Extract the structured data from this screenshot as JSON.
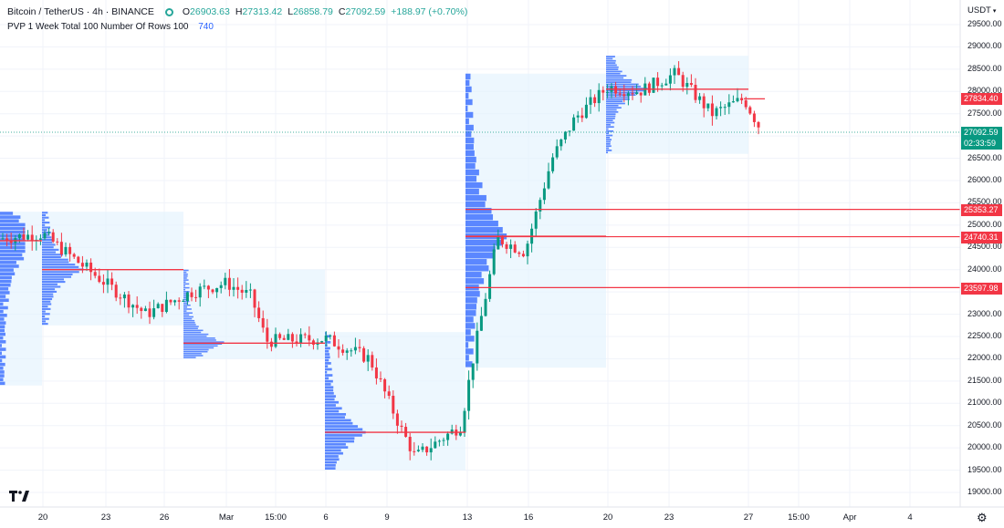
{
  "legend": {
    "symbol": "Bitcoin / TetherUS · 4h · BINANCE",
    "open_key": "O",
    "open": "26903.63",
    "high_key": "H",
    "high": "27313.42",
    "low_key": "L",
    "low": "26858.79",
    "close_key": "C",
    "close": "27092.59",
    "change": "+188.97 (+0.70%)"
  },
  "indicator": {
    "name": "PVP 1 Week Total 100 Number Of Rows 100",
    "value": "740"
  },
  "currency": "USDT",
  "currency_menu_icon": "caret-down-icon",
  "y_ticks": [
    "29500.00",
    "29000.00",
    "28500.00",
    "28000.00",
    "27500.00",
    "27000.00",
    "26500.00",
    "26000.00",
    "25500.00",
    "25000.00",
    "24500.00",
    "24000.00",
    "23500.00",
    "23000.00",
    "22500.00",
    "22000.00",
    "21500.00",
    "21000.00",
    "20500.00",
    "20000.00",
    "19500.00",
    "19000.00"
  ],
  "x_ticks": [
    "20",
    "23",
    "26",
    "Mar",
    "15:00",
    "6",
    "9",
    "13",
    "16",
    "20",
    "23",
    "27",
    "15:00",
    "Apr",
    "4"
  ],
  "price_labels": {
    "high_level": "27834.40",
    "current": "27092.59",
    "countdown": "02:33:59",
    "level1": "25353.27",
    "level2": "24740.31",
    "level3": "23597.98"
  },
  "logo_text": "17",
  "settings_icon": "gear-icon",
  "colors": {
    "up": "#089981",
    "down": "#f23645",
    "volume": "#2962ff",
    "box": "#e3f2fd",
    "poc": "#f23645"
  },
  "chart_data": {
    "type": "candlestick",
    "title": "Bitcoin / TetherUS · 4h · BINANCE",
    "ylim": [
      18800,
      29800
    ],
    "anchor_points": [
      {
        "x": "Feb 17",
        "price": 24700
      },
      {
        "x": "Feb 20",
        "price": 24800
      },
      {
        "x": "Feb 22",
        "price": 24100
      },
      {
        "x": "Feb 25",
        "price": 23000
      },
      {
        "x": "Feb 28",
        "price": 23500
      },
      {
        "x": "Mar 1",
        "price": 23700
      },
      {
        "x": "Mar 2",
        "price": 23400
      },
      {
        "x": "Mar 3",
        "price": 22400
      },
      {
        "x": "Mar 6",
        "price": 22450
      },
      {
        "x": "Mar 8",
        "price": 22000
      },
      {
        "x": "Mar 9",
        "price": 20400
      },
      {
        "x": "Mar 10",
        "price": 19800
      },
      {
        "x": "Mar 12",
        "price": 20500
      },
      {
        "x": "Mar 13",
        "price": 22200
      },
      {
        "x": "Mar 14",
        "price": 24700
      },
      {
        "x": "Mar 16",
        "price": 24400
      },
      {
        "x": "Mar 17",
        "price": 26500
      },
      {
        "x": "Mar 18",
        "price": 27400
      },
      {
        "x": "Mar 20",
        "price": 28100
      },
      {
        "x": "Mar 22",
        "price": 28000
      },
      {
        "x": "Mar 23",
        "price": 28400
      },
      {
        "x": "Mar 25",
        "price": 27500
      },
      {
        "x": "Mar 27",
        "price": 27834
      },
      {
        "x": "Mar 28",
        "price": 27092
      }
    ],
    "horizontal_levels": [
      25353.27,
      24740.31,
      23597.98
    ],
    "current_price": 27092.59
  }
}
